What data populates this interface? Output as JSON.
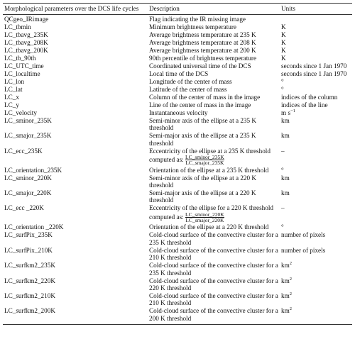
{
  "table": {
    "header": [
      "Morphological parameters over the DCS life cycles",
      "Description",
      "Units"
    ],
    "rows": [
      {
        "parameter": "QCgeo_IRimage",
        "description": "Flag indicating the IR missing image"
      },
      {
        "parameter": "LC_tbmin",
        "description": "Minimum brightness temperature",
        "units": "K"
      },
      {
        "parameter": "LC_tbavg_235K",
        "description": "Average brightness temperature at 235 K",
        "units": "K"
      },
      {
        "parameter": "LC_tbavg_208K",
        "description": "Average brightness temperature at 208 K",
        "units": "K"
      },
      {
        "parameter": "LC_tbavg_200K",
        "description": "Average brightness temperature at 200 K",
        "units": "K"
      },
      {
        "parameter": "LC_tb_90th",
        "description": "90th percentile of brightness temperature",
        "units": "K"
      },
      {
        "parameter": "LC_UTC_time",
        "description": "Coordinated universal time of the DCS",
        "units": "seconds since 1 Jan 1970"
      },
      {
        "parameter": "LC_localtime",
        "description": "Local time of the DCS",
        "units": "seconds since 1 Jan 1970"
      },
      {
        "parameter": "LC_lon",
        "description": "Longitude of the center of mass",
        "units": "°"
      },
      {
        "parameter": "LC_lat",
        "description": "Latitude of the center of mass",
        "units": "°"
      },
      {
        "parameter": "LC_x",
        "description": "Column of the center of mass in the image",
        "units": "indices of the column"
      },
      {
        "parameter": "LC_y",
        "description": "Line of the center of mass in the image",
        "units": "indices of the line"
      },
      {
        "parameter": "LC_velocity",
        "description": "Instantaneous velocity",
        "units": "m s",
        "units_sup": "−1"
      },
      {
        "parameter": "LC_sminor_235K",
        "description": "Semi-minor axis of the ellipse at a 235 K threshold",
        "units": "km"
      },
      {
        "parameter": "LC_smajor_235K",
        "description": "Semi-major axis of the ellipse at a 235 K threshold",
        "units": "km"
      },
      {
        "parameter": "LC_ecc_235K",
        "description": "Eccentricity of the ellipse at a 235 K threshold computed as:",
        "numerator": "LC_sminor_235K",
        "denominator": "LC_smajor_235K",
        "units": "–"
      },
      {
        "parameter": "LC_orientation_235K",
        "description": "Orientation of the ellipse at a 235 K threshold",
        "units": "°"
      },
      {
        "parameter": "LC_sminor_220K",
        "description": "Semi-minor axis of the ellipse at a 220 K threshold",
        "units": "km"
      },
      {
        "parameter": "LC_smajor_220K",
        "description": "Semi-major axis of the ellipse at a 220 K threshold",
        "units": "km"
      },
      {
        "parameter": "LC_ecc _220K",
        "description": "Eccentricity of the ellipse for a 220 K threshold computed as:",
        "numerator": "LC_sminor_220K",
        "denominator": "LC_smajor_220K",
        "units": "–"
      },
      {
        "parameter": "LC_orientation _220K",
        "description": "Orientation of the ellipse at a 220 K threshold",
        "units": "°"
      },
      {
        "parameter": "LC_surfPix_235K",
        "description": "Cold-cloud surface of the convective cluster for a 235 K threshold",
        "units": "number of pixels"
      },
      {
        "parameter": "LC_surfPix_210K",
        "description": "Cold-cloud surface of the convective cluster for a 210 K threshold",
        "units": "number of pixels"
      },
      {
        "parameter": "LC_surfkm2_235K",
        "description": "Cold-cloud surface of the convective cluster for a 235 K threshold",
        "units": "km",
        "units_sup": "2"
      },
      {
        "parameter": "LC_surfkm2_220K",
        "description": "Cold-cloud surface of the convective cluster for a 220 K threshold",
        "units": "km",
        "units_sup": "2"
      },
      {
        "parameter": "LC_surfkm2_210K",
        "description": "Cold-cloud surface of the convective cluster for a 210 K threshold",
        "units": "km",
        "units_sup": "2"
      },
      {
        "parameter": "LC_surfkm2_200K",
        "description": "Cold-cloud surface of the convective cluster for a 200 K threshold",
        "units": "km",
        "units_sup": "2"
      }
    ]
  }
}
